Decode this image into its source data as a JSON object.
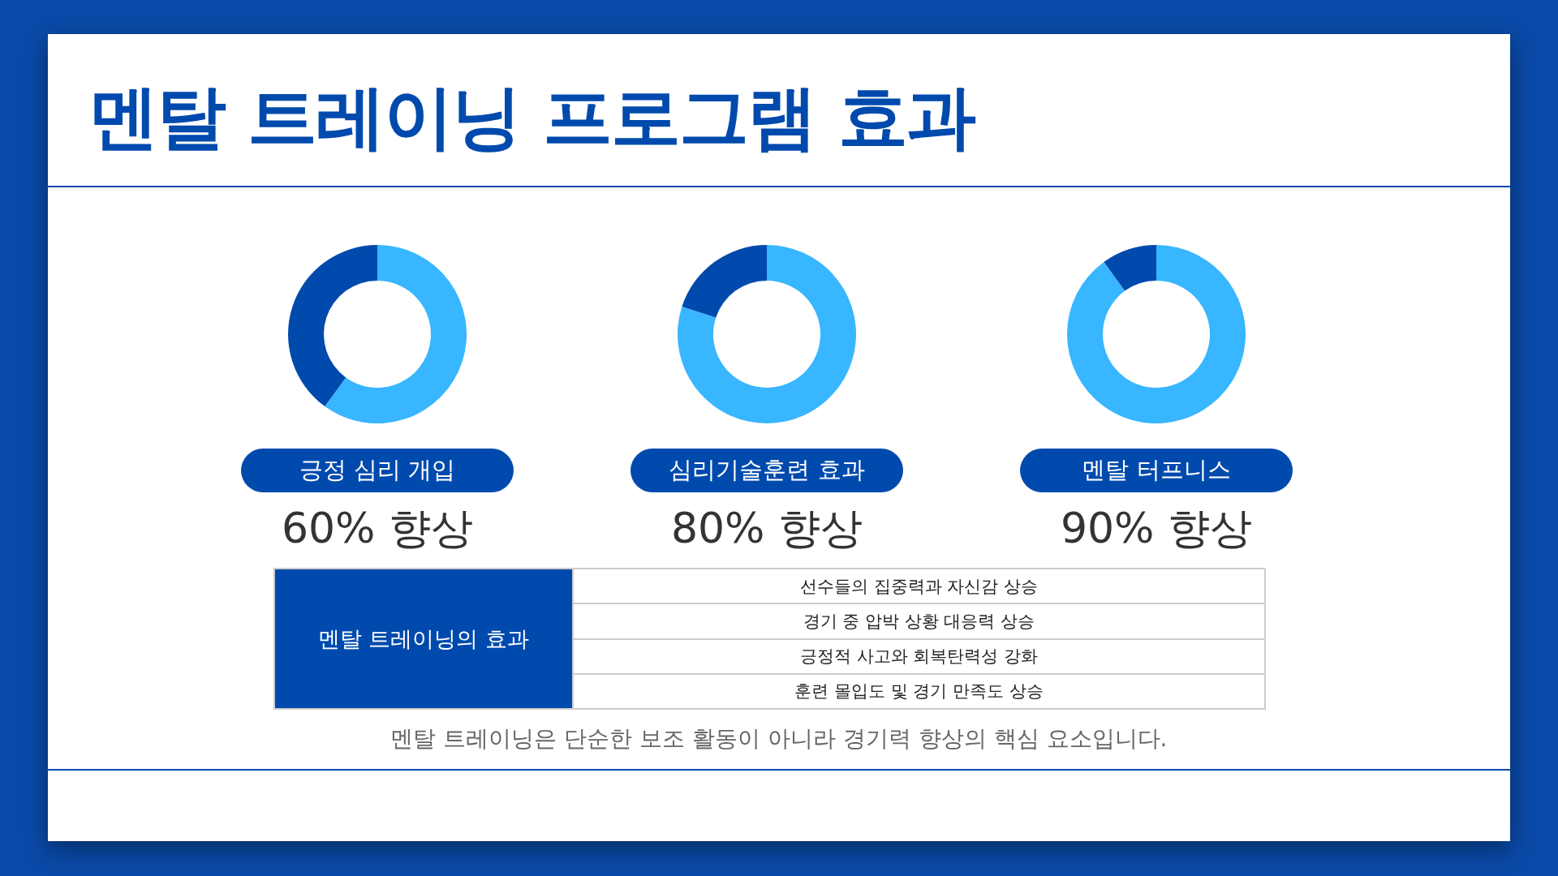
{
  "chart_data": [
    {
      "type": "other",
      "title": "멘탈 트레이닝 프로그램 효과"
    },
    {
      "type": "donut",
      "title": "긍정 심리 개입",
      "categories": [
        null,
        null
      ],
      "values": [
        60,
        40
      ],
      "colors": [
        "#38b6ff",
        "#004aad"
      ],
      "value_labels": [
        "60% 향상",
        null
      ]
    },
    {
      "type": "donut",
      "title": "심리기술훈련 효과",
      "categories": [
        null,
        null
      ],
      "values": [
        80,
        20
      ],
      "colors": [
        "#38b6ff",
        "#004aad"
      ],
      "value_labels": [
        "80% 향상",
        null
      ]
    },
    {
      "type": "donut",
      "title": "멘탈 터프니스",
      "categories": [
        null,
        null
      ],
      "values": [
        90,
        10
      ],
      "colors": [
        "#38b6ff",
        "#004aad"
      ],
      "value_labels": [
        "90% 향상",
        null
      ]
    },
    {
      "type": "other",
      "title": "멘탈 트레이닝의 효과",
      "annotations": [
        "선수들의 집중력과 자신감 상승",
        "경기 중 압박 상황 대응력 상승",
        "긍정적 사고와 회복탄력성 강화",
        "훈련 몰입도 및 경기 만족도 상승"
      ]
    },
    {
      "type": "other",
      "annotations": [
        "멘탈 트레이닝은 단순한 보조 활동이 아니라 경기력 향상의 핵심 요소입니다."
      ]
    }
  ]
}
